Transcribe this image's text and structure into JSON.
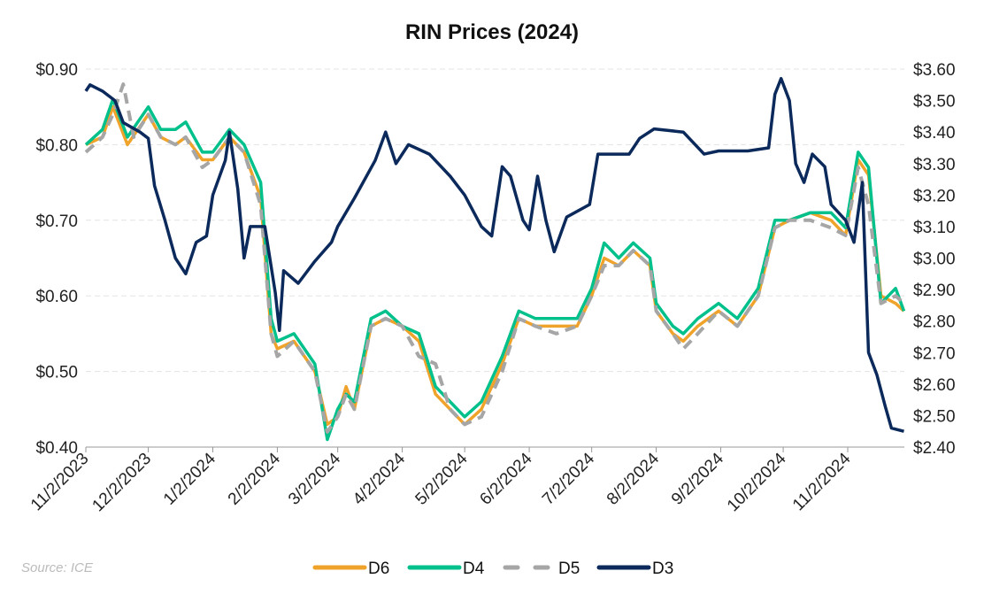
{
  "chart_data": {
    "type": "line",
    "title": "RIN Prices (2024)",
    "source": "Source: ICE",
    "grid": true,
    "legend_position": "bottom",
    "x_ticks": [
      "11/2/2023",
      "12/2/2023",
      "1/2/2024",
      "2/2/2024",
      "3/2/2024",
      "4/2/2024",
      "5/2/2024",
      "6/2/2024",
      "7/2/2024",
      "8/2/2024",
      "9/2/2024",
      "10/2/2024",
      "11/2/2024"
    ],
    "y_left": {
      "ylim": [
        0.4,
        0.9
      ],
      "ticks": [
        "$0.40",
        "$0.50",
        "$0.60",
        "$0.70",
        "$0.80",
        "$0.90"
      ]
    },
    "y_right": {
      "ylim": [
        2.4,
        3.6
      ],
      "ticks": [
        "$2.40",
        "$2.50",
        "$2.60",
        "$2.70",
        "$2.80",
        "$2.90",
        "$3.00",
        "$3.10",
        "$3.20",
        "$3.30",
        "$3.40",
        "$3.50",
        "$3.60"
      ]
    },
    "series": [
      {
        "name": "D6",
        "axis": "left",
        "color": "#F0A32A",
        "dash": false,
        "points": [
          [
            "2023-11-02",
            0.8
          ],
          [
            "2023-11-10",
            0.81
          ],
          [
            "2023-11-15",
            0.85
          ],
          [
            "2023-11-22",
            0.8
          ],
          [
            "2023-12-02",
            0.84
          ],
          [
            "2023-12-08",
            0.81
          ],
          [
            "2023-12-15",
            0.8
          ],
          [
            "2023-12-20",
            0.81
          ],
          [
            "2023-12-28",
            0.78
          ],
          [
            "2024-01-02",
            0.78
          ],
          [
            "2024-01-10",
            0.81
          ],
          [
            "2024-01-17",
            0.79
          ],
          [
            "2024-01-25",
            0.73
          ],
          [
            "2024-01-30",
            0.55
          ],
          [
            "2024-02-02",
            0.53
          ],
          [
            "2024-02-10",
            0.54
          ],
          [
            "2024-02-20",
            0.5
          ],
          [
            "2024-02-26",
            0.43
          ],
          [
            "2024-03-02",
            0.44
          ],
          [
            "2024-03-06",
            0.48
          ],
          [
            "2024-03-10",
            0.45
          ],
          [
            "2024-03-18",
            0.56
          ],
          [
            "2024-03-25",
            0.57
          ],
          [
            "2024-04-02",
            0.56
          ],
          [
            "2024-04-10",
            0.54
          ],
          [
            "2024-04-18",
            0.47
          ],
          [
            "2024-04-25",
            0.45
          ],
          [
            "2024-05-02",
            0.43
          ],
          [
            "2024-05-10",
            0.45
          ],
          [
            "2024-05-20",
            0.51
          ],
          [
            "2024-05-28",
            0.57
          ],
          [
            "2024-06-05",
            0.56
          ],
          [
            "2024-06-15",
            0.56
          ],
          [
            "2024-06-25",
            0.56
          ],
          [
            "2024-07-02",
            0.6
          ],
          [
            "2024-07-08",
            0.65
          ],
          [
            "2024-07-15",
            0.64
          ],
          [
            "2024-07-22",
            0.66
          ],
          [
            "2024-07-30",
            0.64
          ],
          [
            "2024-08-02",
            0.58
          ],
          [
            "2024-08-10",
            0.55
          ],
          [
            "2024-08-15",
            0.54
          ],
          [
            "2024-08-22",
            0.56
          ],
          [
            "2024-09-01",
            0.58
          ],
          [
            "2024-09-10",
            0.56
          ],
          [
            "2024-09-20",
            0.6
          ],
          [
            "2024-09-28",
            0.69
          ],
          [
            "2024-10-05",
            0.7
          ],
          [
            "2024-10-15",
            0.71
          ],
          [
            "2024-10-25",
            0.7
          ],
          [
            "2024-11-01",
            0.68
          ],
          [
            "2024-11-07",
            0.78
          ],
          [
            "2024-11-12",
            0.76
          ],
          [
            "2024-11-18",
            0.6
          ],
          [
            "2024-11-25",
            0.59
          ],
          [
            "2024-11-29",
            0.58
          ]
        ]
      },
      {
        "name": "D4",
        "axis": "left",
        "color": "#00C08B",
        "dash": false,
        "points": [
          [
            "2023-11-02",
            0.8
          ],
          [
            "2023-11-10",
            0.82
          ],
          [
            "2023-11-15",
            0.86
          ],
          [
            "2023-11-22",
            0.81
          ],
          [
            "2023-12-02",
            0.85
          ],
          [
            "2023-12-08",
            0.82
          ],
          [
            "2023-12-15",
            0.82
          ],
          [
            "2023-12-20",
            0.83
          ],
          [
            "2023-12-28",
            0.79
          ],
          [
            "2024-01-02",
            0.79
          ],
          [
            "2024-01-10",
            0.82
          ],
          [
            "2024-01-17",
            0.8
          ],
          [
            "2024-01-25",
            0.75
          ],
          [
            "2024-01-30",
            0.57
          ],
          [
            "2024-02-02",
            0.54
          ],
          [
            "2024-02-10",
            0.55
          ],
          [
            "2024-02-20",
            0.51
          ],
          [
            "2024-02-26",
            0.41
          ],
          [
            "2024-03-02",
            0.45
          ],
          [
            "2024-03-06",
            0.47
          ],
          [
            "2024-03-10",
            0.46
          ],
          [
            "2024-03-18",
            0.57
          ],
          [
            "2024-03-25",
            0.58
          ],
          [
            "2024-04-02",
            0.56
          ],
          [
            "2024-04-10",
            0.55
          ],
          [
            "2024-04-18",
            0.48
          ],
          [
            "2024-04-25",
            0.46
          ],
          [
            "2024-05-02",
            0.44
          ],
          [
            "2024-05-10",
            0.46
          ],
          [
            "2024-05-20",
            0.52
          ],
          [
            "2024-05-28",
            0.58
          ],
          [
            "2024-06-05",
            0.57
          ],
          [
            "2024-06-15",
            0.57
          ],
          [
            "2024-06-25",
            0.57
          ],
          [
            "2024-07-02",
            0.61
          ],
          [
            "2024-07-08",
            0.67
          ],
          [
            "2024-07-15",
            0.65
          ],
          [
            "2024-07-22",
            0.67
          ],
          [
            "2024-07-30",
            0.65
          ],
          [
            "2024-08-02",
            0.59
          ],
          [
            "2024-08-10",
            0.56
          ],
          [
            "2024-08-15",
            0.55
          ],
          [
            "2024-08-22",
            0.57
          ],
          [
            "2024-09-01",
            0.59
          ],
          [
            "2024-09-10",
            0.57
          ],
          [
            "2024-09-20",
            0.61
          ],
          [
            "2024-09-28",
            0.7
          ],
          [
            "2024-10-05",
            0.7
          ],
          [
            "2024-10-15",
            0.71
          ],
          [
            "2024-10-25",
            0.71
          ],
          [
            "2024-11-01",
            0.69
          ],
          [
            "2024-11-07",
            0.79
          ],
          [
            "2024-11-12",
            0.77
          ],
          [
            "2024-11-18",
            0.59
          ],
          [
            "2024-11-25",
            0.61
          ],
          [
            "2024-11-29",
            0.58
          ]
        ]
      },
      {
        "name": "D5",
        "axis": "left",
        "color": "#A6A6A6",
        "dash": true,
        "points": [
          [
            "2023-11-02",
            0.79
          ],
          [
            "2023-11-10",
            0.81
          ],
          [
            "2023-11-15",
            0.84
          ],
          [
            "2023-11-20",
            0.88
          ],
          [
            "2023-11-25",
            0.81
          ],
          [
            "2023-12-02",
            0.84
          ],
          [
            "2023-12-08",
            0.81
          ],
          [
            "2023-12-15",
            0.8
          ],
          [
            "2023-12-20",
            0.81
          ],
          [
            "2023-12-28",
            0.77
          ],
          [
            "2024-01-02",
            0.78
          ],
          [
            "2024-01-10",
            0.81
          ],
          [
            "2024-01-17",
            0.79
          ],
          [
            "2024-01-25",
            0.72
          ],
          [
            "2024-01-30",
            0.55
          ],
          [
            "2024-02-02",
            0.52
          ],
          [
            "2024-02-10",
            0.54
          ],
          [
            "2024-02-20",
            0.5
          ],
          [
            "2024-02-26",
            0.42
          ],
          [
            "2024-03-02",
            0.44
          ],
          [
            "2024-03-06",
            0.47
          ],
          [
            "2024-03-10",
            0.45
          ],
          [
            "2024-03-18",
            0.56
          ],
          [
            "2024-03-25",
            0.57
          ],
          [
            "2024-04-02",
            0.56
          ],
          [
            "2024-04-10",
            0.52
          ],
          [
            "2024-04-18",
            0.51
          ],
          [
            "2024-04-25",
            0.45
          ],
          [
            "2024-05-02",
            0.43
          ],
          [
            "2024-05-10",
            0.44
          ],
          [
            "2024-05-20",
            0.5
          ],
          [
            "2024-05-28",
            0.57
          ],
          [
            "2024-06-05",
            0.56
          ],
          [
            "2024-06-15",
            0.55
          ],
          [
            "2024-06-25",
            0.56
          ],
          [
            "2024-07-02",
            0.6
          ],
          [
            "2024-07-08",
            0.64
          ],
          [
            "2024-07-15",
            0.64
          ],
          [
            "2024-07-22",
            0.66
          ],
          [
            "2024-07-30",
            0.64
          ],
          [
            "2024-08-02",
            0.58
          ],
          [
            "2024-08-10",
            0.55
          ],
          [
            "2024-08-15",
            0.53
          ],
          [
            "2024-08-22",
            0.55
          ],
          [
            "2024-09-01",
            0.58
          ],
          [
            "2024-09-10",
            0.56
          ],
          [
            "2024-09-20",
            0.6
          ],
          [
            "2024-09-28",
            0.69
          ],
          [
            "2024-10-05",
            0.7
          ],
          [
            "2024-10-15",
            0.7
          ],
          [
            "2024-10-25",
            0.69
          ],
          [
            "2024-11-01",
            0.68
          ],
          [
            "2024-11-07",
            0.77
          ],
          [
            "2024-11-12",
            0.72
          ],
          [
            "2024-11-18",
            0.59
          ],
          [
            "2024-11-25",
            0.6
          ],
          [
            "2024-11-29",
            0.59
          ]
        ]
      },
      {
        "name": "D3",
        "axis": "right",
        "color": "#0B2A5B",
        "dash": false,
        "points": [
          [
            "2023-11-02",
            3.53
          ],
          [
            "2023-11-04",
            3.55
          ],
          [
            "2023-11-10",
            3.53
          ],
          [
            "2023-11-16",
            3.5
          ],
          [
            "2023-11-20",
            3.43
          ],
          [
            "2023-11-28",
            3.4
          ],
          [
            "2023-12-02",
            3.38
          ],
          [
            "2023-12-05",
            3.23
          ],
          [
            "2023-12-10",
            3.12
          ],
          [
            "2023-12-15",
            3.0
          ],
          [
            "2023-12-20",
            2.95
          ],
          [
            "2023-12-25",
            3.05
          ],
          [
            "2023-12-30",
            3.07
          ],
          [
            "2024-01-02",
            3.2
          ],
          [
            "2024-01-08",
            3.31
          ],
          [
            "2024-01-10",
            3.4
          ],
          [
            "2024-01-14",
            3.22
          ],
          [
            "2024-01-17",
            3.0
          ],
          [
            "2024-01-20",
            3.1
          ],
          [
            "2024-01-27",
            3.1
          ],
          [
            "2024-02-01",
            2.89
          ],
          [
            "2024-02-03",
            2.77
          ],
          [
            "2024-02-05",
            2.96
          ],
          [
            "2024-02-12",
            2.92
          ],
          [
            "2024-02-20",
            2.99
          ],
          [
            "2024-02-28",
            3.05
          ],
          [
            "2024-03-02",
            3.1
          ],
          [
            "2024-03-10",
            3.19
          ],
          [
            "2024-03-20",
            3.31
          ],
          [
            "2024-03-25",
            3.4
          ],
          [
            "2024-03-30",
            3.3
          ],
          [
            "2024-04-05",
            3.36
          ],
          [
            "2024-04-15",
            3.33
          ],
          [
            "2024-04-25",
            3.26
          ],
          [
            "2024-05-02",
            3.2
          ],
          [
            "2024-05-10",
            3.1
          ],
          [
            "2024-05-15",
            3.07
          ],
          [
            "2024-05-20",
            3.29
          ],
          [
            "2024-05-24",
            3.26
          ],
          [
            "2024-05-30",
            3.12
          ],
          [
            "2024-06-02",
            3.09
          ],
          [
            "2024-06-06",
            3.26
          ],
          [
            "2024-06-10",
            3.12
          ],
          [
            "2024-06-14",
            3.02
          ],
          [
            "2024-06-20",
            3.13
          ],
          [
            "2024-07-01",
            3.17
          ],
          [
            "2024-07-05",
            3.33
          ],
          [
            "2024-07-20",
            3.33
          ],
          [
            "2024-07-25",
            3.38
          ],
          [
            "2024-08-01",
            3.41
          ],
          [
            "2024-08-15",
            3.4
          ],
          [
            "2024-08-25",
            3.33
          ],
          [
            "2024-09-01",
            3.34
          ],
          [
            "2024-09-15",
            3.34
          ],
          [
            "2024-09-25",
            3.35
          ],
          [
            "2024-09-28",
            3.52
          ],
          [
            "2024-10-01",
            3.57
          ],
          [
            "2024-10-05",
            3.5
          ],
          [
            "2024-10-08",
            3.3
          ],
          [
            "2024-10-12",
            3.24
          ],
          [
            "2024-10-16",
            3.33
          ],
          [
            "2024-10-22",
            3.29
          ],
          [
            "2024-10-25",
            3.17
          ],
          [
            "2024-11-01",
            3.12
          ],
          [
            "2024-11-05",
            3.05
          ],
          [
            "2024-11-09",
            3.24
          ],
          [
            "2024-11-12",
            2.7
          ],
          [
            "2024-11-16",
            2.63
          ],
          [
            "2024-11-20",
            2.53
          ],
          [
            "2024-11-23",
            2.46
          ],
          [
            "2024-11-29",
            2.45
          ]
        ]
      }
    ]
  }
}
